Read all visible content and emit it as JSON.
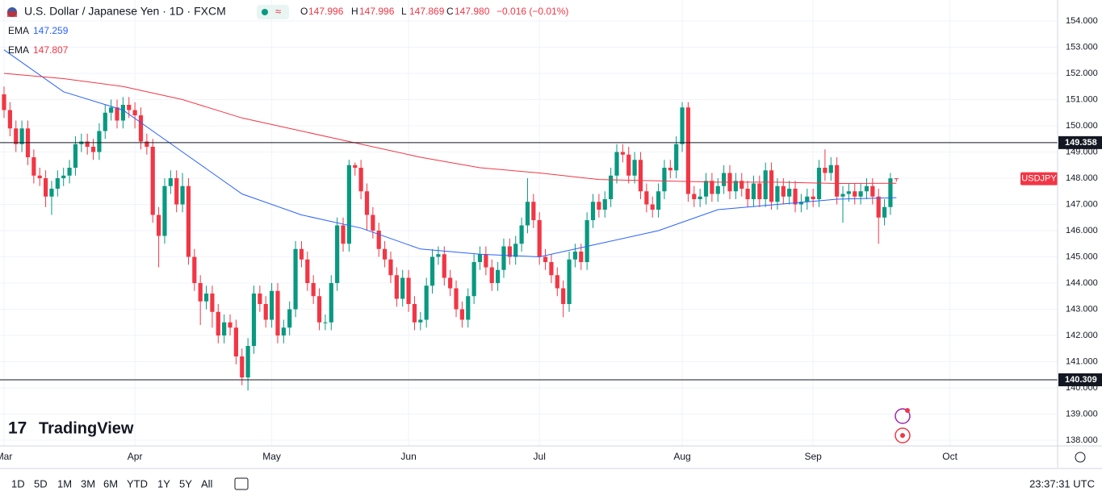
{
  "chart_data": {
    "type": "candlestick",
    "title": "U.S. Dollar / Japanese Yen · 1D · FXCM",
    "ohlc_legend": [
      {
        "key": "O",
        "value": "147.996"
      },
      {
        "key": "H",
        "value": "147.996"
      },
      {
        "key": "L",
        "value": "147.869"
      },
      {
        "key": "C",
        "value": "147.980"
      }
    ],
    "change": "−0.016 (−0.01%)",
    "symbol_tag": "USDJPY",
    "up_color": "#089981",
    "down_color": "#f23645",
    "ohlc": [
      [
        151.2,
        151.5,
        150.3,
        150.6
      ],
      [
        150.6,
        150.9,
        149.6,
        149.9
      ],
      [
        149.9,
        150.2,
        149.0,
        149.3
      ],
      [
        149.3,
        150.2,
        149.0,
        149.9
      ],
      [
        149.9,
        150.2,
        148.5,
        148.8
      ],
      [
        148.8,
        149.1,
        147.8,
        148.1
      ],
      [
        148.1,
        148.4,
        147.7,
        148.0
      ],
      [
        148.0,
        148.3,
        146.9,
        147.3
      ],
      [
        147.3,
        147.9,
        146.6,
        147.6
      ],
      [
        147.6,
        148.3,
        147.3,
        148.0
      ],
      [
        148.0,
        148.4,
        147.7,
        148.1
      ],
      [
        148.1,
        148.7,
        147.8,
        148.4
      ],
      [
        148.4,
        149.6,
        148.1,
        149.3
      ],
      [
        149.3,
        149.7,
        149.0,
        149.4
      ],
      [
        149.4,
        149.7,
        148.9,
        149.2
      ],
      [
        149.2,
        149.5,
        148.7,
        149.0
      ],
      [
        149.0,
        150.1,
        148.7,
        149.8
      ],
      [
        149.8,
        150.8,
        149.5,
        150.5
      ],
      [
        150.5,
        151.0,
        150.2,
        150.7
      ],
      [
        150.7,
        151.0,
        149.9,
        150.2
      ],
      [
        150.2,
        151.1,
        149.9,
        150.8
      ],
      [
        150.8,
        151.1,
        150.3,
        150.6
      ],
      [
        150.6,
        150.9,
        149.9,
        150.4
      ],
      [
        150.4,
        150.7,
        149.1,
        149.4
      ],
      [
        149.4,
        149.7,
        148.9,
        149.2
      ],
      [
        149.2,
        149.5,
        146.3,
        146.6
      ],
      [
        146.6,
        146.9,
        144.6,
        145.8
      ],
      [
        145.8,
        148.0,
        145.5,
        147.7
      ],
      [
        147.7,
        148.3,
        147.4,
        148.0
      ],
      [
        148.0,
        148.3,
        146.7,
        147.0
      ],
      [
        147.0,
        148.2,
        146.7,
        147.7
      ],
      [
        147.7,
        148.0,
        144.7,
        145.0
      ],
      [
        145.0,
        145.3,
        143.7,
        144.0
      ],
      [
        144.0,
        144.3,
        142.4,
        143.3
      ],
      [
        143.3,
        143.9,
        143.0,
        143.6
      ],
      [
        143.6,
        143.9,
        142.3,
        142.9
      ],
      [
        142.9,
        143.2,
        141.7,
        142.0
      ],
      [
        142.0,
        142.8,
        141.7,
        142.5
      ],
      [
        142.5,
        142.8,
        142.0,
        142.3
      ],
      [
        142.3,
        142.6,
        140.9,
        141.2
      ],
      [
        141.2,
        141.5,
        140.1,
        140.4
      ],
      [
        140.4,
        141.9,
        139.9,
        141.6
      ],
      [
        141.6,
        143.9,
        141.3,
        143.6
      ],
      [
        143.6,
        143.9,
        142.9,
        143.2
      ],
      [
        143.2,
        143.5,
        142.3,
        142.6
      ],
      [
        142.6,
        144.0,
        142.3,
        143.7
      ],
      [
        143.7,
        144.0,
        141.7,
        142.0
      ],
      [
        142.0,
        142.6,
        141.7,
        142.3
      ],
      [
        142.3,
        143.3,
        142.0,
        143.0
      ],
      [
        143.0,
        145.6,
        142.7,
        145.3
      ],
      [
        145.3,
        145.6,
        144.6,
        144.9
      ],
      [
        144.9,
        145.2,
        143.7,
        144.0
      ],
      [
        144.0,
        144.3,
        143.2,
        143.5
      ],
      [
        143.5,
        143.8,
        142.2,
        142.5
      ],
      [
        142.5,
        142.8,
        142.2,
        142.5
      ],
      [
        142.5,
        144.3,
        142.2,
        144.0
      ],
      [
        144.0,
        146.5,
        143.7,
        146.2
      ],
      [
        146.2,
        146.5,
        145.2,
        145.5
      ],
      [
        145.5,
        148.7,
        145.2,
        148.5
      ],
      [
        148.5,
        148.6,
        148.1,
        148.4
      ],
      [
        148.4,
        148.7,
        147.2,
        147.5
      ],
      [
        147.5,
        147.8,
        146.0,
        146.6
      ],
      [
        146.6,
        146.9,
        145.7,
        146.0
      ],
      [
        146.0,
        146.3,
        145.0,
        145.3
      ],
      [
        145.3,
        145.6,
        144.6,
        144.9
      ],
      [
        144.9,
        145.2,
        144.0,
        144.3
      ],
      [
        144.3,
        144.6,
        143.1,
        143.4
      ],
      [
        143.4,
        144.5,
        143.1,
        144.2
      ],
      [
        144.2,
        144.5,
        142.9,
        143.2
      ],
      [
        143.2,
        143.5,
        142.2,
        142.5
      ],
      [
        142.5,
        142.9,
        142.2,
        142.6
      ],
      [
        142.6,
        144.2,
        142.3,
        143.9
      ],
      [
        143.9,
        145.3,
        143.6,
        145.0
      ],
      [
        145.0,
        145.4,
        144.7,
        145.1
      ],
      [
        145.1,
        145.4,
        143.9,
        144.2
      ],
      [
        144.2,
        144.5,
        143.5,
        143.8
      ],
      [
        143.8,
        144.1,
        142.7,
        143.0
      ],
      [
        143.0,
        143.3,
        142.3,
        142.6
      ],
      [
        142.6,
        143.8,
        142.3,
        143.5
      ],
      [
        143.5,
        145.1,
        143.2,
        144.8
      ],
      [
        144.8,
        145.4,
        144.5,
        145.1
      ],
      [
        145.1,
        145.4,
        144.3,
        144.6
      ],
      [
        144.6,
        144.9,
        143.7,
        144.0
      ],
      [
        144.0,
        144.8,
        143.7,
        144.5
      ],
      [
        144.5,
        145.7,
        144.2,
        145.4
      ],
      [
        145.4,
        145.7,
        144.7,
        145.0
      ],
      [
        145.0,
        145.8,
        144.7,
        145.5
      ],
      [
        145.5,
        146.5,
        145.2,
        146.2
      ],
      [
        146.2,
        148.0,
        145.9,
        147.1
      ],
      [
        147.1,
        147.4,
        146.1,
        146.4
      ],
      [
        146.4,
        146.7,
        144.7,
        145.0
      ],
      [
        145.0,
        145.3,
        144.5,
        144.8
      ],
      [
        144.8,
        145.1,
        144.0,
        144.3
      ],
      [
        144.3,
        144.6,
        143.5,
        143.8
      ],
      [
        143.8,
        144.1,
        142.7,
        143.2
      ],
      [
        143.2,
        145.2,
        142.9,
        144.9
      ],
      [
        144.9,
        145.5,
        144.6,
        145.2
      ],
      [
        145.2,
        145.5,
        144.5,
        144.8
      ],
      [
        144.8,
        146.7,
        144.5,
        146.4
      ],
      [
        146.4,
        147.4,
        146.1,
        147.1
      ],
      [
        147.1,
        147.4,
        146.5,
        146.8
      ],
      [
        146.8,
        147.5,
        146.5,
        147.2
      ],
      [
        147.2,
        148.4,
        146.9,
        148.1
      ],
      [
        148.1,
        149.3,
        147.8,
        149.0
      ],
      [
        149.0,
        149.3,
        148.6,
        148.9
      ],
      [
        148.9,
        149.2,
        147.8,
        148.1
      ],
      [
        148.1,
        149.0,
        147.8,
        148.7
      ],
      [
        148.7,
        149.0,
        147.2,
        147.5
      ],
      [
        147.5,
        147.8,
        146.7,
        147.0
      ],
      [
        147.0,
        147.3,
        146.5,
        146.8
      ],
      [
        146.8,
        147.8,
        146.5,
        147.5
      ],
      [
        147.5,
        148.7,
        147.2,
        148.4
      ],
      [
        148.4,
        148.7,
        148.0,
        148.3
      ],
      [
        148.3,
        149.6,
        148.0,
        149.3
      ],
      [
        149.3,
        150.9,
        149.0,
        150.7
      ],
      [
        150.7,
        150.9,
        147.1,
        147.4
      ],
      [
        147.4,
        147.7,
        146.9,
        147.2
      ],
      [
        147.2,
        147.6,
        146.9,
        147.3
      ],
      [
        147.3,
        148.2,
        147.0,
        147.9
      ],
      [
        147.9,
        148.2,
        147.1,
        147.4
      ],
      [
        147.4,
        148.0,
        147.1,
        147.7
      ],
      [
        147.7,
        148.5,
        147.4,
        148.2
      ],
      [
        148.2,
        148.5,
        147.2,
        147.5
      ],
      [
        147.5,
        148.2,
        147.2,
        147.9
      ],
      [
        147.9,
        148.2,
        147.3,
        147.6
      ],
      [
        147.6,
        147.9,
        146.9,
        147.2
      ],
      [
        147.2,
        148.1,
        146.9,
        147.8
      ],
      [
        147.8,
        148.1,
        146.9,
        147.2
      ],
      [
        147.2,
        148.6,
        146.9,
        148.3
      ],
      [
        148.3,
        148.6,
        146.8,
        147.1
      ],
      [
        147.1,
        148.0,
        146.8,
        147.7
      ],
      [
        147.7,
        148.0,
        147.0,
        147.3
      ],
      [
        147.3,
        147.9,
        147.0,
        147.6
      ],
      [
        147.6,
        147.9,
        146.7,
        147.0
      ],
      [
        147.0,
        147.4,
        146.7,
        147.1
      ],
      [
        147.1,
        147.6,
        146.8,
        147.3
      ],
      [
        147.3,
        147.6,
        146.9,
        147.2
      ],
      [
        147.2,
        148.7,
        146.9,
        148.4
      ],
      [
        148.4,
        149.1,
        147.9,
        148.2
      ],
      [
        148.2,
        148.8,
        147.9,
        148.5
      ],
      [
        148.5,
        148.8,
        147.0,
        147.3
      ],
      [
        147.3,
        147.7,
        146.3,
        147.4
      ],
      [
        147.4,
        147.8,
        147.1,
        147.5
      ],
      [
        147.5,
        147.8,
        147.0,
        147.3
      ],
      [
        147.3,
        147.8,
        147.0,
        147.5
      ],
      [
        147.5,
        148.0,
        147.2,
        147.7
      ],
      [
        147.7,
        148.0,
        147.0,
        147.3
      ],
      [
        147.3,
        147.6,
        145.5,
        146.5
      ],
      [
        146.5,
        147.2,
        146.2,
        146.9
      ],
      [
        146.9,
        148.2,
        146.6,
        147.996
      ],
      [
        147.996,
        147.996,
        147.869,
        147.98
      ]
    ],
    "series": [
      {
        "name": "EMA",
        "color": "#2962ff",
        "last_label": "147.259",
        "x": [
          0,
          10,
          20,
          30,
          40,
          50,
          60,
          70,
          80,
          90,
          100,
          110,
          120,
          130,
          140,
          150
        ],
        "values": [
          152.9,
          151.3,
          150.6,
          149.0,
          147.4,
          146.6,
          146.1,
          145.3,
          145.1,
          145.0,
          145.5,
          146.0,
          146.8,
          147.0,
          147.2,
          147.259
        ]
      },
      {
        "name": "EMA",
        "color": "#f23645",
        "last_label": "147.807",
        "x": [
          0,
          10,
          20,
          30,
          40,
          50,
          60,
          70,
          80,
          90,
          100,
          110,
          120,
          130,
          140,
          150
        ],
        "values": [
          152.0,
          151.8,
          151.5,
          151.0,
          150.3,
          149.8,
          149.3,
          148.8,
          148.4,
          148.2,
          147.95,
          147.9,
          147.85,
          147.85,
          147.8,
          147.807
        ]
      }
    ],
    "hlines": [
      149.358,
      140.309
    ],
    "xlim": [
      -0.68,
      177.1
    ],
    "xticks": [
      {
        "value": 0,
        "label": "Mar"
      },
      {
        "value": 22,
        "label": "Apr"
      },
      {
        "value": 45,
        "label": "May"
      },
      {
        "value": 68,
        "label": "Jun"
      },
      {
        "value": 90,
        "label": "Jul"
      },
      {
        "value": 114,
        "label": "Aug"
      },
      {
        "value": 136,
        "label": "Sep"
      },
      {
        "value": 159,
        "label": "Oct"
      }
    ],
    "ylim": [
      137.785,
      154.8
    ],
    "yticks": [
      {
        "value": 138,
        "label": "138.000"
      },
      {
        "value": 139,
        "label": "139.000"
      },
      {
        "value": 140,
        "label": "140.000"
      },
      {
        "value": 141,
        "label": "141.000"
      },
      {
        "value": 142,
        "label": "142.000"
      },
      {
        "value": 143,
        "label": "143.000"
      },
      {
        "value": 144,
        "label": "144.000"
      },
      {
        "value": 145,
        "label": "145.000"
      },
      {
        "value": 146,
        "label": "146.000"
      },
      {
        "value": 147,
        "label": "147.000"
      },
      {
        "value": 148,
        "label": "148.000"
      },
      {
        "value": 149,
        "label": "149.000"
      },
      {
        "value": 150,
        "label": "150.000"
      },
      {
        "value": 151,
        "label": "151.000"
      },
      {
        "value": 152,
        "label": "152.000"
      },
      {
        "value": 153,
        "label": "153.000"
      },
      {
        "value": 154,
        "label": "154.000"
      }
    ],
    "grid": true
  },
  "logo": "TradingView",
  "ranges": [
    "1D",
    "5D",
    "1M",
    "3M",
    "6M",
    "YTD",
    "1Y",
    "5Y",
    "All"
  ],
  "clock": "23:37:31 UTC"
}
